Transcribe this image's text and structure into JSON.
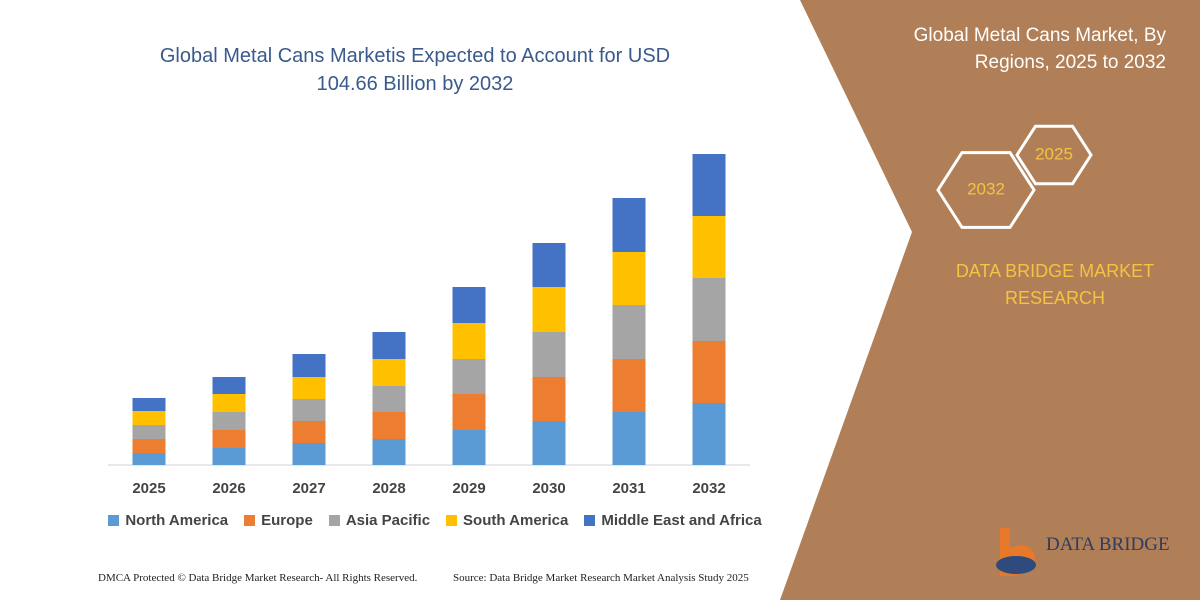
{
  "chart_data": {
    "type": "bar",
    "stacked": true,
    "title": "Global Metal Cans Marketis Expected to Account for USD 104.66 Billion by 2032",
    "categories": [
      "2025",
      "2026",
      "2027",
      "2028",
      "2029",
      "2030",
      "2031",
      "2032"
    ],
    "series": [
      {
        "name": "North America",
        "color": "#5b9bd5",
        "values": [
          12,
          17,
          22,
          26,
          35,
          44,
          53,
          62
        ]
      },
      {
        "name": "Europe",
        "color": "#ed7d31",
        "values": [
          14,
          18,
          22,
          27,
          36,
          44,
          53,
          62
        ]
      },
      {
        "name": "Asia Pacific",
        "color": "#a5a5a5",
        "values": [
          14,
          18,
          22,
          26,
          35,
          45,
          54,
          63
        ]
      },
      {
        "name": "South America",
        "color": "#ffc000",
        "values": [
          14,
          18,
          22,
          27,
          36,
          45,
          53,
          62
        ]
      },
      {
        "name": "Middle East and Africa",
        "color": "#4472c4",
        "values": [
          13,
          17,
          23,
          27,
          36,
          44,
          54,
          62
        ]
      }
    ],
    "ylim": [
      0,
      311
    ],
    "legend": "bottom",
    "grid": false
  },
  "panel": {
    "heading": "Global Metal Cans Market, By Regions, 2025 to 2032",
    "hexagons": [
      "2025",
      "2032"
    ],
    "brand": "DATA BRIDGE MARKET RESEARCH"
  },
  "footer": {
    "left": "DMCA Protected © Data Bridge Market Research- All Rights Reserved.",
    "right": "Source: Data Bridge Market Research  Market Analysis Study 2025"
  },
  "logo": {
    "text": "DATA BRIDGE"
  }
}
